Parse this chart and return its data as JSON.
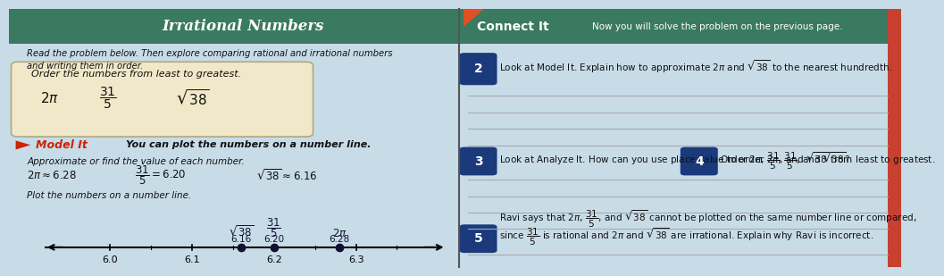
{
  "bg_left": "#c8dce8",
  "bg_right": "#dce8f0",
  "header_color": "#3a7a60",
  "title_text": "Irrational Numbers",
  "connect_it_label": "Connect It",
  "connect_it_sub": "Now you will solve the problem on the previous page.",
  "read_problem_text": "Read the problem below. Then explore comparing rational and irrational numbers\nand writing them in order.",
  "problem_box_bg": "#f0e8c8",
  "problem_box_edge": "#b0a880",
  "order_text": "Order the numbers from least to greatest.",
  "model_it_color": "#cc2200",
  "model_it_label": "Model It",
  "model_it_sub": "You can plot the numbers on a number line.",
  "approx_text": "Approximate or find the value of each number.",
  "plot_text": "Plot the numbers on a number line.",
  "q2_num": "2",
  "q2_text": "Look at Model It. Explain how to approximate 2π and √38 to the nearest hundredth.",
  "q3_num": "3",
  "q3_text": "Look at Analyze It. How can you use place value to order 2π, 31/5, and √38?",
  "q4_num": "4",
  "q4_text": "Order 2π, 31/5, and √38 from least to greatest.",
  "q5_num": "5",
  "q5_text1": "Ravi says that 2π, 31/5, and √38 cannot be plotted on the same number line or compared,",
  "q5_text2": "since 31/5 is rational and 2π and √38 are irrational. Explain why Ravi is incorrect.",
  "num_badge_color": "#1a3a7c",
  "number_line_points": [
    6.16,
    6.2,
    6.28
  ],
  "number_line_ticks": [
    6.0,
    6.1,
    6.2,
    6.3
  ],
  "line_color": "#888888",
  "dot_color": "#1a1a1a",
  "arrow_color": "#444488"
}
